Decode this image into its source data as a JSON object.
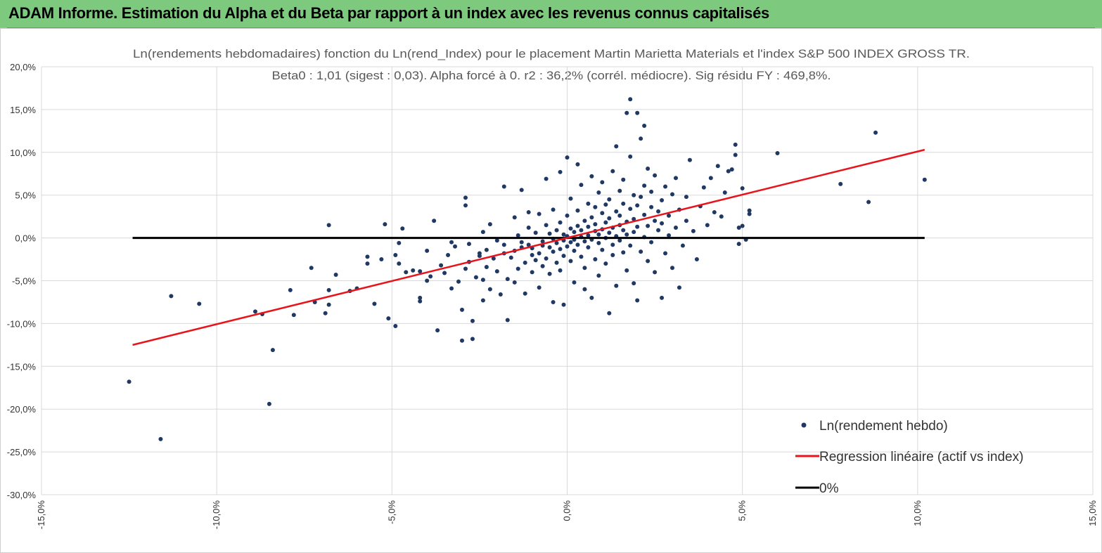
{
  "banner": {
    "title": "ADAM Informe. Estimation du Alpha et du Beta par rapport à un index avec les revenus connus capitalisés"
  },
  "chart_data": {
    "type": "scatter",
    "title": "Ln(rendements hebdomadaires) fonction du Ln(rend_Index) pour le placement Martin Marietta Materials et l'index S&P 500 INDEX GROSS TR.",
    "subtitle": "Beta0 : 1,01  (sigest : 0,03). Alpha forcé à 0. r2 : 36,2% (corrél. médiocre). Sig résidu FY : 469,8%.",
    "xlim": [
      -15,
      15
    ],
    "ylim": [
      -30,
      20
    ],
    "x_ticks": [
      "-15,0%",
      "-10,0%",
      "-5,0%",
      "0,0%",
      "5,0%",
      "10,0%",
      "15,0%"
    ],
    "y_ticks": [
      "20,0%",
      "15,0%",
      "10,0%",
      "5,0%",
      "0,0%",
      "-5,0%",
      "-10,0%",
      "-15,0%",
      "-20,0%",
      "-25,0%",
      "-30,0%"
    ],
    "grid": true,
    "legend_position": "bottom-right",
    "colors": {
      "points": "#203864",
      "regression": "#e8141b",
      "zero": "#000000"
    },
    "series": [
      {
        "name": "Ln(rendement hebdo)",
        "kind": "scatter",
        "points": [
          [
            -12.5,
            -16.8
          ],
          [
            -11.6,
            -23.5
          ],
          [
            -11.3,
            -6.8
          ],
          [
            -10.5,
            -7.7
          ],
          [
            -8.5,
            -19.4
          ],
          [
            -8.4,
            -13.1
          ],
          [
            -8.9,
            -8.6
          ],
          [
            -8.7,
            -8.9
          ],
          [
            -7.8,
            -9.0
          ],
          [
            -7.9,
            -6.1
          ],
          [
            -7.3,
            -3.5
          ],
          [
            -7.2,
            -7.5
          ],
          [
            -6.9,
            -8.8
          ],
          [
            -6.8,
            -7.8
          ],
          [
            -6.8,
            -6.1
          ],
          [
            -6.8,
            1.5
          ],
          [
            -6.6,
            -4.3
          ],
          [
            -6.2,
            -6.2
          ],
          [
            -6.0,
            -5.9
          ],
          [
            -5.7,
            -3.0
          ],
          [
            -5.7,
            -2.2
          ],
          [
            -5.5,
            -7.7
          ],
          [
            -5.3,
            -2.5
          ],
          [
            -5.2,
            1.6
          ],
          [
            -5.1,
            -9.4
          ],
          [
            -4.9,
            -2.0
          ],
          [
            -4.9,
            -10.3
          ],
          [
            -4.8,
            -3.0
          ],
          [
            -4.8,
            -0.6
          ],
          [
            -4.7,
            1.1
          ],
          [
            -4.6,
            -4.0
          ],
          [
            -4.4,
            -3.8
          ],
          [
            -4.2,
            -7.0
          ],
          [
            -4.2,
            -7.4
          ],
          [
            -4.2,
            -3.9
          ],
          [
            -4.0,
            -5.0
          ],
          [
            -4.0,
            -1.5
          ],
          [
            -3.9,
            -4.5
          ],
          [
            -3.8,
            2.0
          ],
          [
            -3.7,
            -10.8
          ],
          [
            -3.6,
            -3.2
          ],
          [
            -3.5,
            -4.1
          ],
          [
            -3.4,
            -2.0
          ],
          [
            -3.3,
            -5.9
          ],
          [
            -3.3,
            -0.5
          ],
          [
            -3.2,
            -1.0
          ],
          [
            -3.1,
            -5.1
          ],
          [
            -3.0,
            -8.4
          ],
          [
            -3.0,
            -12.0
          ],
          [
            -2.9,
            -3.6
          ],
          [
            -2.9,
            4.7
          ],
          [
            -2.9,
            3.8
          ],
          [
            -2.8,
            -2.8
          ],
          [
            -2.8,
            -0.7
          ],
          [
            -2.7,
            -9.7
          ],
          [
            -2.7,
            -11.8
          ],
          [
            -2.6,
            -4.6
          ],
          [
            -2.5,
            -1.8
          ],
          [
            -2.5,
            -2.1
          ],
          [
            -2.4,
            -4.9
          ],
          [
            -2.4,
            -7.3
          ],
          [
            -2.4,
            0.7
          ],
          [
            -2.3,
            -3.4
          ],
          [
            -2.3,
            -1.4
          ],
          [
            -2.2,
            -6.0
          ],
          [
            -2.2,
            1.6
          ],
          [
            -2.1,
            -2.4
          ],
          [
            -2.0,
            -0.3
          ],
          [
            -2.0,
            -3.9
          ],
          [
            -1.9,
            -6.6
          ],
          [
            -1.8,
            6.0
          ],
          [
            -1.8,
            -0.8
          ],
          [
            -1.8,
            -1.8
          ],
          [
            -1.7,
            -4.8
          ],
          [
            -1.7,
            -9.6
          ],
          [
            -1.6,
            -2.3
          ],
          [
            -1.5,
            -1.5
          ],
          [
            -1.5,
            -5.2
          ],
          [
            -1.5,
            2.4
          ],
          [
            -1.4,
            0.3
          ],
          [
            -1.4,
            -3.6
          ],
          [
            -1.3,
            5.6
          ],
          [
            -1.3,
            -0.5
          ],
          [
            -1.3,
            -1.1
          ],
          [
            -1.2,
            -2.9
          ],
          [
            -1.2,
            -6.5
          ],
          [
            -1.1,
            -0.8
          ],
          [
            -1.1,
            1.2
          ],
          [
            -1.1,
            3.0
          ],
          [
            -1.0,
            -2.0
          ],
          [
            -1.0,
            -4.0
          ],
          [
            -1.0,
            -1.2
          ],
          [
            -0.9,
            0.6
          ],
          [
            -0.9,
            -2.6
          ],
          [
            -0.8,
            -5.8
          ],
          [
            -0.8,
            -1.8
          ],
          [
            -0.8,
            2.8
          ],
          [
            -0.7,
            -0.4
          ],
          [
            -0.7,
            -0.9
          ],
          [
            -0.7,
            -3.3
          ],
          [
            -0.6,
            1.5
          ],
          [
            -0.6,
            -2.4
          ],
          [
            -0.6,
            6.9
          ],
          [
            -0.5,
            -1.1
          ],
          [
            -0.5,
            -4.2
          ],
          [
            -0.5,
            0.5
          ],
          [
            -0.4,
            -7.5
          ],
          [
            -0.4,
            -0.1
          ],
          [
            -0.4,
            -1.6
          ],
          [
            -0.4,
            3.3
          ],
          [
            -0.3,
            -2.9
          ],
          [
            -0.3,
            0.9
          ],
          [
            -0.3,
            -0.6
          ],
          [
            -0.2,
            7.7
          ],
          [
            -0.2,
            1.8
          ],
          [
            -0.2,
            -1.3
          ],
          [
            -0.2,
            -3.8
          ],
          [
            -0.1,
            -0.3
          ],
          [
            -0.1,
            0.4
          ],
          [
            -0.1,
            -7.8
          ],
          [
            -0.1,
            -2.1
          ],
          [
            0.0,
            9.4
          ],
          [
            0.0,
            -1.0
          ],
          [
            0.0,
            0.2
          ],
          [
            0.0,
            2.6
          ],
          [
            0.1,
            -0.5
          ],
          [
            0.1,
            1.1
          ],
          [
            0.1,
            -2.7
          ],
          [
            0.1,
            4.6
          ],
          [
            0.2,
            -0.2
          ],
          [
            0.2,
            0.7
          ],
          [
            0.2,
            -1.5
          ],
          [
            0.2,
            -5.2
          ],
          [
            0.3,
            8.6
          ],
          [
            0.3,
            1.4
          ],
          [
            0.3,
            -0.8
          ],
          [
            0.3,
            3.2
          ],
          [
            0.4,
            0.1
          ],
          [
            0.4,
            -2.2
          ],
          [
            0.4,
            6.2
          ],
          [
            0.4,
            0.9
          ],
          [
            0.5,
            -6.0
          ],
          [
            0.5,
            2.0
          ],
          [
            0.5,
            -0.4
          ],
          [
            0.5,
            -3.5
          ],
          [
            0.6,
            1.3
          ],
          [
            0.6,
            4.0
          ],
          [
            0.6,
            0.3
          ],
          [
            0.6,
            -1.1
          ],
          [
            0.7,
            7.2
          ],
          [
            0.7,
            -0.2
          ],
          [
            0.7,
            2.4
          ],
          [
            0.7,
            -7.0
          ],
          [
            0.8,
            0.8
          ],
          [
            0.8,
            3.6
          ],
          [
            0.8,
            -2.5
          ],
          [
            0.8,
            1.6
          ],
          [
            0.9,
            5.3
          ],
          [
            0.9,
            -0.6
          ],
          [
            0.9,
            0.4
          ],
          [
            0.9,
            -4.4
          ],
          [
            1.0,
            2.9
          ],
          [
            1.0,
            1.0
          ],
          [
            1.0,
            -1.4
          ],
          [
            1.0,
            6.5
          ],
          [
            1.1,
            0.0
          ],
          [
            1.1,
            3.9
          ],
          [
            1.1,
            -3.0
          ],
          [
            1.1,
            1.8
          ],
          [
            1.2,
            0.6
          ],
          [
            1.2,
            -8.8
          ],
          [
            1.2,
            4.5
          ],
          [
            1.2,
            2.3
          ],
          [
            1.3,
            -0.8
          ],
          [
            1.3,
            1.2
          ],
          [
            1.3,
            7.8
          ],
          [
            1.3,
            -2.0
          ],
          [
            1.4,
            3.1
          ],
          [
            1.4,
            0.2
          ],
          [
            1.4,
            10.7
          ],
          [
            1.4,
            -5.6
          ],
          [
            1.5,
            1.5
          ],
          [
            1.5,
            5.5
          ],
          [
            1.5,
            -0.3
          ],
          [
            1.5,
            2.6
          ],
          [
            1.6,
            -1.7
          ],
          [
            1.6,
            0.9
          ],
          [
            1.6,
            6.8
          ],
          [
            1.6,
            4.0
          ],
          [
            1.7,
            14.6
          ],
          [
            1.7,
            -3.8
          ],
          [
            1.7,
            1.9
          ],
          [
            1.7,
            0.4
          ],
          [
            1.8,
            16.2
          ],
          [
            1.8,
            3.4
          ],
          [
            1.8,
            -0.9
          ],
          [
            1.8,
            9.5
          ],
          [
            1.9,
            2.2
          ],
          [
            1.9,
            5.0
          ],
          [
            1.9,
            -5.3
          ],
          [
            1.9,
            0.7
          ],
          [
            2.0,
            14.6
          ],
          [
            2.0,
            1.3
          ],
          [
            2.0,
            -7.3
          ],
          [
            2.0,
            3.8
          ],
          [
            2.1,
            11.6
          ],
          [
            2.1,
            -1.6
          ],
          [
            2.1,
            4.8
          ],
          [
            2.2,
            13.1
          ],
          [
            2.2,
            0.1
          ],
          [
            2.2,
            2.7
          ],
          [
            2.2,
            6.1
          ],
          [
            2.3,
            -2.7
          ],
          [
            2.3,
            1.4
          ],
          [
            2.3,
            8.1
          ],
          [
            2.4,
            3.6
          ],
          [
            2.4,
            -0.5
          ],
          [
            2.4,
            5.4
          ],
          [
            2.5,
            2.0
          ],
          [
            2.5,
            -4.0
          ],
          [
            2.5,
            7.3
          ],
          [
            2.6,
            0.9
          ],
          [
            2.6,
            3.1
          ],
          [
            2.7,
            -7.0
          ],
          [
            2.7,
            4.4
          ],
          [
            2.7,
            1.7
          ],
          [
            2.8,
            6.0
          ],
          [
            2.8,
            -1.8
          ],
          [
            2.9,
            2.6
          ],
          [
            2.9,
            0.3
          ],
          [
            3.0,
            5.1
          ],
          [
            3.0,
            -3.5
          ],
          [
            3.1,
            1.2
          ],
          [
            3.1,
            7.0
          ],
          [
            3.2,
            -5.8
          ],
          [
            3.2,
            3.3
          ],
          [
            3.3,
            -0.9
          ],
          [
            3.4,
            4.8
          ],
          [
            3.4,
            2.0
          ],
          [
            3.5,
            9.1
          ],
          [
            3.6,
            0.8
          ],
          [
            3.7,
            -2.5
          ],
          [
            3.8,
            3.7
          ],
          [
            3.9,
            5.9
          ],
          [
            4.0,
            1.5
          ],
          [
            4.1,
            7.0
          ],
          [
            4.2,
            3.0
          ],
          [
            4.3,
            8.4
          ],
          [
            4.4,
            2.5
          ],
          [
            4.5,
            5.3
          ],
          [
            4.6,
            7.8
          ],
          [
            4.7,
            8.0
          ],
          [
            4.8,
            10.9
          ],
          [
            4.8,
            9.7
          ],
          [
            4.9,
            -0.7
          ],
          [
            4.9,
            1.2
          ],
          [
            5.0,
            1.4
          ],
          [
            5.0,
            5.8
          ],
          [
            5.1,
            -0.2
          ],
          [
            5.2,
            2.8
          ],
          [
            5.2,
            3.2
          ],
          [
            6.0,
            9.9
          ],
          [
            7.8,
            6.3
          ],
          [
            8.6,
            4.2
          ],
          [
            8.8,
            12.3
          ],
          [
            10.2,
            6.8
          ]
        ]
      },
      {
        "name": "Regression linéaire (actif vs index)",
        "kind": "line",
        "x": [
          -12.4,
          10.2
        ],
        "y": [
          -12.5,
          10.3
        ]
      },
      {
        "name": "0%",
        "kind": "line",
        "x": [
          -12.4,
          10.2
        ],
        "y": [
          0,
          0
        ]
      }
    ]
  }
}
